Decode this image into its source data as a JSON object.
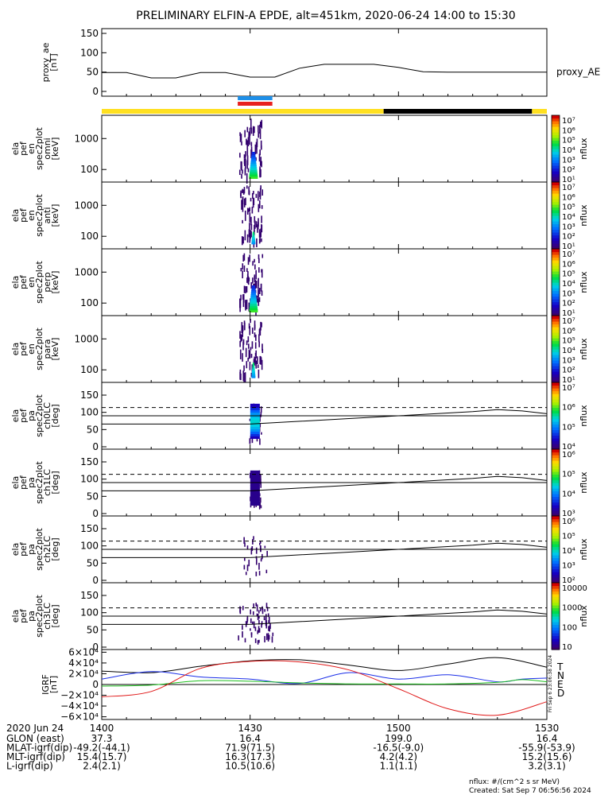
{
  "title": "PRELIMINARY ELFIN-A EPDE, alt=451km, 2020-06-24 14:00 to 15:30",
  "x_axis": {
    "label": "2020 Jun 24",
    "ticks": [
      "1400",
      "1430",
      "1500",
      "1530"
    ],
    "tick_minutes": [
      0,
      30,
      60,
      90
    ]
  },
  "orbit_rows": [
    {
      "label": "GLON (east)",
      "values": [
        "37.3",
        "16.4",
        "199.0",
        "16.4"
      ]
    },
    {
      "label": "MLAT-igrf(dip)",
      "values": [
        "-49.2(-44.1)",
        "71.9(71.5)",
        "-16.5(-9.0)",
        "-55.9(-53.9)"
      ]
    },
    {
      "label": "MLT-igrf(dip)",
      "values": [
        "15.4(15.7)",
        "16.3(17.3)",
        "4.2(4.2)",
        "15.2(15.6)"
      ]
    },
    {
      "label": "L-igrf(dip)",
      "values": [
        "2.4(2.1)",
        "10.5(10.6)",
        "1.1(1.1)",
        "3.2(3.1)"
      ]
    }
  ],
  "footer": {
    "units": "nflux: #/(cm^2 s sr MeV)",
    "created": "Created: Sat Sep  7 06:56:56 2024",
    "stamp": "Fri Sep  6 23:06:38 2024"
  },
  "colors": {
    "yellow_bar": "#ffe020",
    "black_bar": "#000000",
    "blue_marker": "#1e8fe8",
    "red_marker": "#e8201e",
    "grf_T": "#000000",
    "grf_N": "#1a2ee8",
    "grf_E": "#20c020",
    "grf_D": "#e01818"
  },
  "chart_data": [
    {
      "type": "line",
      "name": "proxy_ae",
      "ylabel_lines": [
        "proxy_ae",
        "[nT]"
      ],
      "legend": "proxy_AE",
      "ylim": [
        0,
        150
      ],
      "yticks": [
        "0",
        "50",
        "100",
        "150"
      ],
      "x": [
        0,
        5,
        10,
        15,
        20,
        25,
        30,
        35,
        40,
        45,
        50,
        55,
        60,
        65,
        70,
        75,
        80,
        85,
        90
      ],
      "y": [
        49,
        49,
        35,
        35,
        49,
        49,
        37,
        37,
        60,
        70,
        70,
        70,
        62,
        51,
        50,
        50,
        50,
        50,
        50
      ]
    },
    {
      "type": "bar",
      "name": "status_bar",
      "segments": [
        {
          "start": 0,
          "end": 57,
          "color": "yellow"
        },
        {
          "start": 57,
          "end": 87,
          "color": "black"
        },
        {
          "start": 87,
          "end": 90,
          "color": "yellow"
        }
      ],
      "markers": [
        {
          "start": 27.5,
          "end": 34.5,
          "color": "blue"
        },
        {
          "start": 27.5,
          "end": 34.5,
          "color": "red"
        }
      ]
    },
    {
      "type": "heatmap",
      "name": "ela_pef_en_spec2plot_omni",
      "ylabel_lines": [
        "ela",
        "pef",
        "en",
        "spec2plot",
        "omni",
        "[keV]"
      ],
      "yscale": "log",
      "yticks": [
        "100",
        "1000"
      ],
      "colorbar": {
        "label": "nflux",
        "ticks": [
          "10¹",
          "10²",
          "10³",
          "10⁴",
          "10⁵",
          "10⁶",
          "10⁷"
        ]
      }
    },
    {
      "type": "heatmap",
      "name": "ela_pef_en_spec2plot_anti",
      "ylabel_lines": [
        "ela",
        "pef",
        "en",
        "spec2plot",
        "anti",
        "[keV]"
      ],
      "yscale": "log",
      "yticks": [
        "100",
        "1000"
      ],
      "colorbar": {
        "label": "nflux",
        "ticks": [
          "10¹",
          "10²",
          "10³",
          "10⁴",
          "10⁵",
          "10⁶",
          "10⁷"
        ]
      }
    },
    {
      "type": "heatmap",
      "name": "ela_pef_en_spec2plot_perp",
      "ylabel_lines": [
        "ela",
        "pef",
        "en",
        "spec2plot",
        "perp",
        "[keV]"
      ],
      "yscale": "log",
      "yticks": [
        "100",
        "1000"
      ],
      "colorbar": {
        "label": "nflux",
        "ticks": [
          "10¹",
          "10²",
          "10³",
          "10⁴",
          "10⁵",
          "10⁶",
          "10⁷"
        ]
      }
    },
    {
      "type": "heatmap",
      "name": "ela_pef_en_spec2plot_para",
      "ylabel_lines": [
        "ela",
        "pef",
        "en",
        "spec2plot",
        "para",
        "[keV]"
      ],
      "yscale": "log",
      "yticks": [
        "100",
        "1000"
      ],
      "colorbar": {
        "label": "nflux",
        "ticks": [
          "10¹",
          "10²",
          "10³",
          "10⁴",
          "10⁵",
          "10⁶",
          "10⁷"
        ]
      }
    },
    {
      "type": "heatmap",
      "name": "ela_pef_pa_spec2plot_ch0LC",
      "ylabel_lines": [
        "ela",
        "pef",
        "pa",
        "spec2plot",
        "ch0LC",
        "[deg]"
      ],
      "ylim": [
        0,
        180
      ],
      "yticks": [
        "0",
        "50",
        "100",
        "150"
      ],
      "colorbar": {
        "label": "nflux",
        "ticks": [
          "10⁴",
          "10⁵",
          "10⁶",
          "10⁷"
        ]
      },
      "loss_cone": {
        "x": [
          30,
          45,
          60,
          75,
          80,
          85,
          90
        ],
        "y": [
          66,
          78,
          90,
          102,
          108,
          104,
          96
        ]
      },
      "anti_loss_cone": 114,
      "reference_line": 90
    },
    {
      "type": "heatmap",
      "name": "ela_pef_pa_spec2plot_ch1LC",
      "ylabel_lines": [
        "ela",
        "pef",
        "pa",
        "spec2plot",
        "ch1LC",
        "[deg]"
      ],
      "ylim": [
        0,
        180
      ],
      "yticks": [
        "0",
        "50",
        "100",
        "150"
      ],
      "colorbar": {
        "label": "nflux",
        "ticks": [
          "10³",
          "10⁴",
          "10⁵",
          "10⁶"
        ]
      },
      "loss_cone": {
        "x": [
          30,
          45,
          60,
          75,
          80,
          85,
          90
        ],
        "y": [
          66,
          78,
          90,
          102,
          108,
          104,
          96
        ]
      },
      "anti_loss_cone": 114,
      "reference_line": 90
    },
    {
      "type": "heatmap",
      "name": "ela_pef_pa_spec2plot_ch2LC",
      "ylabel_lines": [
        "ela",
        "pef",
        "pa",
        "spec2plot",
        "ch2LC",
        "[deg]"
      ],
      "ylim": [
        0,
        180
      ],
      "yticks": [
        "0",
        "50",
        "100",
        "150"
      ],
      "colorbar": {
        "label": "nflux",
        "ticks": [
          "10²",
          "10³",
          "10⁴",
          "10⁵",
          "10⁶"
        ]
      },
      "loss_cone": {
        "x": [
          30,
          45,
          60,
          75,
          80,
          85,
          90
        ],
        "y": [
          66,
          78,
          90,
          102,
          108,
          104,
          96
        ]
      },
      "anti_loss_cone": 114,
      "reference_line": 90
    },
    {
      "type": "heatmap",
      "name": "ela_pef_pa_spec2plot_ch3LC",
      "ylabel_lines": [
        "ela",
        "pef",
        "pa",
        "spec2plot",
        "ch3LC",
        "[deg]"
      ],
      "ylim": [
        0,
        180
      ],
      "yticks": [
        "0",
        "50",
        "100",
        "150"
      ],
      "colorbar": {
        "label": "nflux",
        "ticks": [
          "10",
          "100",
          "1000",
          "10000"
        ]
      },
      "loss_cone": {
        "x": [
          30,
          45,
          60,
          75,
          80,
          85,
          90
        ],
        "y": [
          66,
          78,
          90,
          102,
          108,
          104,
          96
        ]
      },
      "anti_loss_cone": 114,
      "reference_line": 90
    },
    {
      "type": "line",
      "name": "IGRF",
      "ylabel_lines": [
        "IGRF",
        "[nT]"
      ],
      "ylim": [
        -65000,
        65000
      ],
      "yticks": [
        "−6×10⁴",
        "−4×10⁴",
        "−2×10⁴",
        "0",
        "2×10⁴",
        "4×10⁴",
        "6×10⁴"
      ],
      "series": [
        {
          "name": "T",
          "x": [
            0,
            10,
            20,
            30,
            40,
            50,
            60,
            70,
            80,
            90
          ],
          "y": [
            25000,
            22000,
            34000,
            44000,
            46000,
            36000,
            26000,
            38000,
            50000,
            32000
          ]
        },
        {
          "name": "N",
          "x": [
            0,
            10,
            20,
            30,
            40,
            50,
            60,
            70,
            80,
            85,
            90
          ],
          "y": [
            10000,
            24000,
            14000,
            10000,
            2000,
            22000,
            10000,
            18000,
            5000,
            10000,
            12000
          ]
        },
        {
          "name": "E",
          "x": [
            0,
            10,
            20,
            30,
            40,
            50,
            60,
            70,
            80,
            85,
            90
          ],
          "y": [
            -3000,
            -1000,
            7000,
            6000,
            3000,
            1000,
            1000,
            1000,
            4000,
            9000,
            5000
          ]
        },
        {
          "name": "D",
          "x": [
            0,
            10,
            20,
            30,
            40,
            50,
            60,
            70,
            80,
            90
          ],
          "y": [
            -23000,
            -13000,
            30000,
            43000,
            42000,
            27000,
            -8000,
            -45000,
            -57000,
            -32000
          ]
        }
      ]
    }
  ]
}
